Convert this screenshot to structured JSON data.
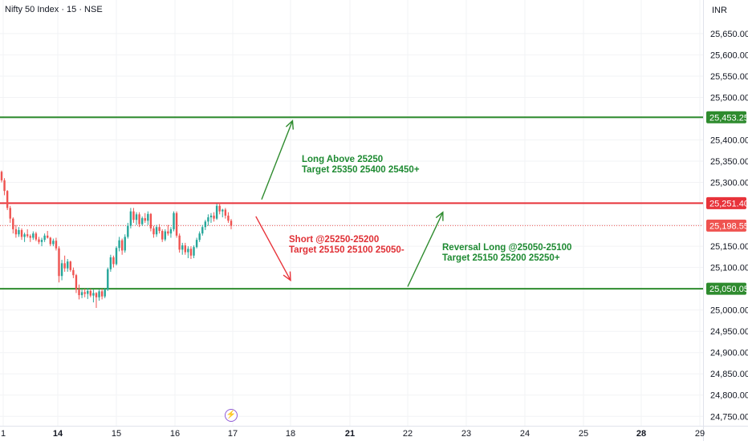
{
  "header": {
    "title": "Nifty 50 Index · 15 · NSE",
    "currency": "INR"
  },
  "annotations": {
    "long_line1": "Long  Above 25250",
    "long_line2": "Target 25350 25400 25450+",
    "short_line1": "Short @25250-25200",
    "short_line2": "Target 25150 25100 25050-",
    "reversal_line1": "Reversal Long  @25050-25100",
    "reversal_line2": "Target 25150 25200 25250+"
  },
  "colors": {
    "up": "#26a69a",
    "down": "#ef5350",
    "resistance_green": "#2e8b2e",
    "pivot_red": "#e8333a",
    "last_price": "#ef5350",
    "support_green": "#2e8b2e",
    "grid": "#f2f3f5",
    "axis_text": "#131722"
  },
  "icons": {
    "event": "lightning-event-icon"
  },
  "chart_data": {
    "type": "candlestick",
    "x_tick_labels": [
      "1",
      "14",
      "15",
      "16",
      "17",
      "18",
      "21",
      "22",
      "23",
      "24",
      "25",
      "28",
      "29"
    ],
    "y_tick_labels": [
      "25,650.00",
      "25,600.00",
      "25,550.00",
      "25,500.00",
      "25,400.00",
      "25,350.00",
      "25,300.00",
      "25,150.00",
      "25,100.00",
      "25,000.00",
      "24,950.00",
      "24,900.00",
      "24,850.00",
      "24,800.00",
      "24,750.00"
    ],
    "y_tick_values": [
      25650,
      25600,
      25550,
      25500,
      25400,
      25350,
      25300,
      25150,
      25100,
      25000,
      24950,
      24900,
      24850,
      24800,
      24750
    ],
    "ylim": [
      24726,
      25729
    ],
    "price_labels": [
      {
        "text": "25,453.25",
        "value": 25453.25,
        "color_key": "resistance_green"
      },
      {
        "text": "25,251.40",
        "value": 25251.4,
        "color_key": "pivot_red"
      },
      {
        "text": "25,198.55",
        "value": 25198.55,
        "color_key": "last_price"
      },
      {
        "text": "25,050.05",
        "value": 25050.05,
        "color_key": "support_green"
      }
    ],
    "horizontal_lines": [
      {
        "value": 25453.25,
        "color_key": "resistance_green",
        "style": "solid"
      },
      {
        "value": 25251.4,
        "color_key": "pivot_red",
        "style": "solid"
      },
      {
        "value": 25198.55,
        "color_key": "last_price",
        "style": "dotted"
      },
      {
        "value": 25050.05,
        "color_key": "support_green",
        "style": "solid"
      }
    ],
    "arrows": [
      {
        "color_key": "resistance_green",
        "from_day": 17.5,
        "from_price": 25260,
        "to_day": 18.1,
        "to_price": 25445
      },
      {
        "color_key": "pivot_red",
        "from_day": 17.4,
        "from_price": 25220,
        "to_day": 18.0,
        "to_price": 25070
      },
      {
        "color_key": "support_green",
        "from_day": 22.0,
        "from_price": 25055,
        "to_day": 22.6,
        "to_price": 25230
      }
    ],
    "candles": [
      [
        25325,
        25328,
        25300,
        25305
      ],
      [
        25305,
        25310,
        25270,
        25280
      ],
      [
        25280,
        25282,
        25235,
        25240
      ],
      [
        25240,
        25245,
        25205,
        25215
      ],
      [
        25215,
        25218,
        25180,
        25190
      ],
      [
        25190,
        25200,
        25170,
        25178
      ],
      [
        25178,
        25195,
        25172,
        25188
      ],
      [
        25188,
        25192,
        25165,
        25172
      ],
      [
        25172,
        25182,
        25160,
        25178
      ],
      [
        25178,
        25190,
        25170,
        25174
      ],
      [
        25174,
        25178,
        25160,
        25170
      ],
      [
        25170,
        25185,
        25165,
        25180
      ],
      [
        25180,
        25184,
        25162,
        25166
      ],
      [
        25166,
        25172,
        25155,
        25160
      ],
      [
        25160,
        25170,
        25150,
        25165
      ],
      [
        25165,
        25180,
        25160,
        25175
      ],
      [
        25175,
        25186,
        25168,
        25170
      ],
      [
        25170,
        25172,
        25150,
        25155
      ],
      [
        25155,
        25168,
        25150,
        25163
      ],
      [
        25163,
        25170,
        25140,
        25145
      ],
      [
        25145,
        25150,
        25065,
        25080
      ],
      [
        25080,
        25118,
        25070,
        25110
      ],
      [
        25110,
        25128,
        25090,
        25098
      ],
      [
        25098,
        25120,
        25090,
        25114
      ],
      [
        25114,
        25116,
        25090,
        25094
      ],
      [
        25094,
        25100,
        25075,
        25082
      ],
      [
        25082,
        25085,
        25040,
        25048
      ],
      [
        25048,
        25060,
        25025,
        25035
      ],
      [
        25035,
        25048,
        25028,
        25042
      ],
      [
        25042,
        25050,
        25030,
        25038
      ],
      [
        25038,
        25052,
        25026,
        25045
      ],
      [
        25045,
        25050,
        25030,
        25034
      ],
      [
        25034,
        25048,
        25018,
        25040
      ],
      [
        25040,
        25042,
        25005,
        25030
      ],
      [
        25030,
        25048,
        25022,
        25044
      ],
      [
        25044,
        25050,
        25025,
        25032
      ],
      [
        25032,
        25052,
        25028,
        25048
      ],
      [
        25048,
        25100,
        25045,
        25096
      ],
      [
        25096,
        25130,
        25090,
        25124
      ],
      [
        25124,
        25128,
        25100,
        25108
      ],
      [
        25108,
        25150,
        25105,
        25146
      ],
      [
        25146,
        25172,
        25138,
        25164
      ],
      [
        25164,
        25168,
        25130,
        25140
      ],
      [
        25140,
        25178,
        25135,
        25172
      ],
      [
        25172,
        25205,
        25168,
        25198
      ],
      [
        25198,
        25240,
        25192,
        25232
      ],
      [
        25232,
        25240,
        25205,
        25212
      ],
      [
        25212,
        25230,
        25200,
        25225
      ],
      [
        25225,
        25230,
        25195,
        25202
      ],
      [
        25202,
        25220,
        25198,
        25216
      ],
      [
        25216,
        25228,
        25205,
        25210
      ],
      [
        25210,
        25232,
        25200,
        25226
      ],
      [
        25226,
        25228,
        25185,
        25192
      ],
      [
        25192,
        25198,
        25170,
        25178
      ],
      [
        25178,
        25200,
        25172,
        25195
      ],
      [
        25195,
        25202,
        25180,
        25186
      ],
      [
        25186,
        25190,
        25160,
        25166
      ],
      [
        25166,
        25190,
        25162,
        25185
      ],
      [
        25185,
        25200,
        25175,
        25180
      ],
      [
        25180,
        25195,
        25170,
        25190
      ],
      [
        25190,
        25232,
        25185,
        25228
      ],
      [
        25228,
        25232,
        25170,
        25175
      ],
      [
        25175,
        25180,
        25135,
        25142
      ],
      [
        25142,
        25158,
        25130,
        25152
      ],
      [
        25152,
        25158,
        25130,
        25136
      ],
      [
        25136,
        25150,
        25122,
        25144
      ],
      [
        25144,
        25150,
        25120,
        25128
      ],
      [
        25128,
        25152,
        25122,
        25148
      ],
      [
        25148,
        25170,
        25145,
        25165
      ],
      [
        25165,
        25185,
        25160,
        25180
      ],
      [
        25180,
        25200,
        25175,
        25195
      ],
      [
        25195,
        25212,
        25188,
        25208
      ],
      [
        25208,
        25225,
        25198,
        25218
      ],
      [
        25218,
        25228,
        25205,
        25222
      ],
      [
        25222,
        25230,
        25208,
        25215
      ],
      [
        25215,
        25250,
        25212,
        25245
      ],
      [
        25245,
        25252,
        25225,
        25232
      ],
      [
        25232,
        25238,
        25218,
        25236
      ],
      [
        25236,
        25240,
        25215,
        25222
      ],
      [
        25222,
        25230,
        25205,
        25210
      ],
      [
        25210,
        25214,
        25190,
        25198
      ]
    ]
  }
}
